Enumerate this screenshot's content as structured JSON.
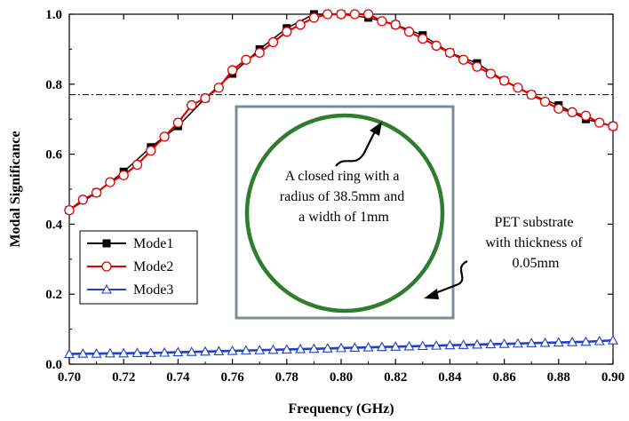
{
  "chart_data": {
    "type": "line",
    "xlabel": "Frequency (GHz)",
    "ylabel": "Modal Significance",
    "xlim": [
      0.7,
      0.9
    ],
    "ylim": [
      0.0,
      1.0
    ],
    "x_ticks": [
      "0.70",
      "0.72",
      "0.74",
      "0.76",
      "0.78",
      "0.80",
      "0.82",
      "0.84",
      "0.86",
      "0.88",
      "0.90"
    ],
    "y_ticks": [
      "0.0",
      "0.2",
      "0.4",
      "0.6",
      "0.8",
      "1.0"
    ],
    "grid": false,
    "legend": "lower-left",
    "reference_line_y": 0.77,
    "series": [
      {
        "name": "Mode1",
        "color": "#000000",
        "marker": "square-filled",
        "x": [
          0.7,
          0.71,
          0.72,
          0.73,
          0.74,
          0.75,
          0.76,
          0.77,
          0.78,
          0.79,
          0.8,
          0.81,
          0.82,
          0.83,
          0.84,
          0.85,
          0.86,
          0.87,
          0.88,
          0.89,
          0.9
        ],
        "y": [
          0.44,
          0.49,
          0.55,
          0.62,
          0.68,
          0.76,
          0.83,
          0.9,
          0.96,
          1.0,
          1.0,
          0.99,
          0.97,
          0.94,
          0.89,
          0.86,
          0.81,
          0.77,
          0.74,
          0.7,
          0.68
        ]
      },
      {
        "name": "Mode2",
        "color": "#e00000",
        "marker": "circle-open",
        "x": [
          0.7,
          0.705,
          0.71,
          0.715,
          0.72,
          0.725,
          0.73,
          0.735,
          0.74,
          0.745,
          0.75,
          0.755,
          0.76,
          0.765,
          0.77,
          0.775,
          0.78,
          0.785,
          0.79,
          0.795,
          0.8,
          0.805,
          0.81,
          0.815,
          0.82,
          0.825,
          0.83,
          0.835,
          0.84,
          0.845,
          0.85,
          0.855,
          0.86,
          0.865,
          0.87,
          0.875,
          0.88,
          0.885,
          0.89,
          0.895,
          0.9
        ],
        "y": [
          0.44,
          0.47,
          0.49,
          0.52,
          0.54,
          0.57,
          0.61,
          0.65,
          0.69,
          0.74,
          0.76,
          0.79,
          0.84,
          0.87,
          0.89,
          0.92,
          0.95,
          0.97,
          0.99,
          1.0,
          1.0,
          1.0,
          1.0,
          0.98,
          0.97,
          0.95,
          0.93,
          0.91,
          0.89,
          0.87,
          0.85,
          0.83,
          0.81,
          0.79,
          0.77,
          0.75,
          0.73,
          0.72,
          0.71,
          0.69,
          0.68
        ]
      },
      {
        "name": "Mode3",
        "color": "#1f3fd0",
        "marker": "triangle-open",
        "x": [
          0.7,
          0.705,
          0.71,
          0.715,
          0.72,
          0.725,
          0.73,
          0.735,
          0.74,
          0.745,
          0.75,
          0.755,
          0.76,
          0.765,
          0.77,
          0.775,
          0.78,
          0.785,
          0.79,
          0.795,
          0.8,
          0.805,
          0.81,
          0.815,
          0.82,
          0.825,
          0.83,
          0.835,
          0.84,
          0.845,
          0.85,
          0.855,
          0.86,
          0.865,
          0.87,
          0.875,
          0.88,
          0.885,
          0.89,
          0.895,
          0.9
        ],
        "y": [
          0.029,
          0.03,
          0.03,
          0.031,
          0.031,
          0.032,
          0.032,
          0.033,
          0.034,
          0.035,
          0.036,
          0.037,
          0.038,
          0.039,
          0.04,
          0.041,
          0.042,
          0.043,
          0.044,
          0.045,
          0.046,
          0.047,
          0.048,
          0.049,
          0.05,
          0.051,
          0.052,
          0.053,
          0.054,
          0.055,
          0.056,
          0.057,
          0.058,
          0.059,
          0.06,
          0.061,
          0.062,
          0.063,
          0.064,
          0.066,
          0.068
        ]
      }
    ],
    "inset": {
      "ring_color": "#2e7d2e",
      "ring_label": [
        "A closed ring with a",
        "radius of 38.5mm and",
        "a width of 1mm"
      ],
      "substrate_label": [
        "PET substrate",
        "with  thickness of",
        "0.05mm"
      ]
    }
  }
}
